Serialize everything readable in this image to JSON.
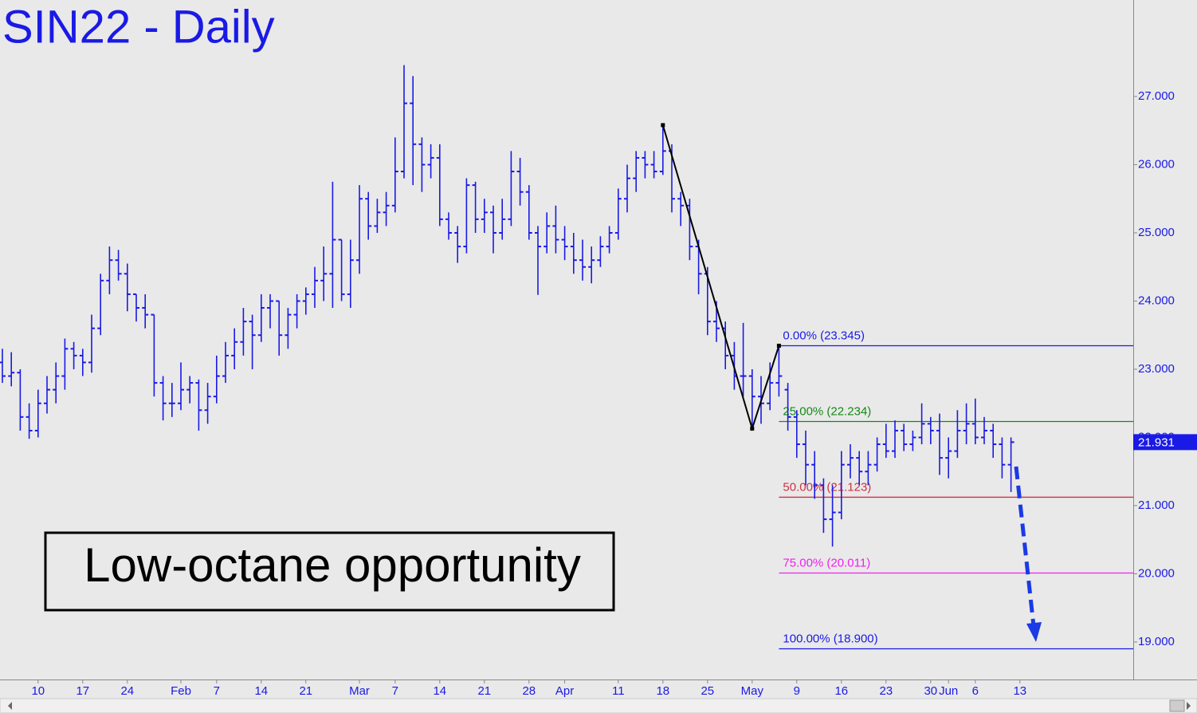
{
  "chart_data": {
    "type": "ohlc",
    "title": "SIN22 - Daily",
    "annotation": "Low-octane opportunity",
    "color": "#1a1ae6",
    "categories": [
      null,
      null,
      null,
      null,
      "10",
      null,
      null,
      null,
      null,
      "17",
      null,
      null,
      null,
      null,
      "24",
      null,
      null,
      null,
      null,
      null,
      "Feb",
      null,
      null,
      null,
      "7",
      null,
      null,
      null,
      null,
      "14",
      null,
      null,
      null,
      null,
      "21",
      null,
      null,
      null,
      null,
      null,
      "Mar",
      null,
      null,
      null,
      "7",
      null,
      null,
      null,
      null,
      "14",
      null,
      null,
      null,
      null,
      "21",
      null,
      null,
      null,
      null,
      "28",
      null,
      null,
      null,
      "Apr",
      null,
      null,
      null,
      null,
      null,
      "11",
      null,
      null,
      null,
      null,
      "18",
      null,
      null,
      null,
      null,
      "25",
      null,
      null,
      null,
      null,
      "May",
      null,
      null,
      null,
      null,
      "9",
      null,
      null,
      null,
      null,
      "16",
      null,
      null,
      null,
      null,
      "23",
      null,
      null,
      null,
      null,
      "30",
      null,
      "Jun",
      null,
      null,
      "6",
      null,
      null,
      null,
      null,
      "13"
    ],
    "open": [
      23.1,
      22.9,
      22.95,
      22.3,
      22.1,
      22.5,
      22.7,
      22.9,
      23.3,
      23.2,
      23.1,
      23.6,
      24.3,
      24.6,
      24.4,
      24.1,
      23.9,
      23.8,
      22.8,
      22.5,
      22.5,
      22.7,
      22.8,
      22.4,
      22.6,
      22.9,
      23.2,
      23.4,
      23.7,
      23.5,
      23.9,
      24.0,
      23.5,
      23.8,
      24.0,
      24.1,
      24.3,
      24.4,
      24.9,
      24.1,
      24.6,
      25.5,
      25.1,
      25.3,
      25.4,
      25.9,
      26.9,
      26.3,
      26.0,
      26.1,
      25.2,
      25.0,
      24.8,
      25.7,
      25.2,
      25.3,
      25.0,
      25.2,
      25.9,
      25.6,
      25.0,
      24.8,
      25.1,
      24.9,
      24.8,
      24.6,
      24.5,
      24.6,
      24.8,
      25.0,
      25.5,
      25.8,
      26.1,
      26.0,
      25.9,
      26.2,
      25.5,
      25.4,
      24.8,
      24.4,
      23.7,
      23.6,
      23.2,
      22.9,
      22.9,
      22.6,
      22.5,
      22.8,
      22.7,
      22.3,
      21.9,
      21.6,
      21.3,
      20.8,
      20.9,
      21.6,
      21.7,
      21.5,
      21.6,
      21.9,
      21.8,
      22.1,
      21.9,
      22.0,
      22.2,
      22.1,
      21.7,
      21.8,
      22.1,
      22.2,
      22.0,
      22.1,
      21.9,
      21.6,
      null
    ],
    "high": [
      23.3,
      23.25,
      23.0,
      22.5,
      22.7,
      22.9,
      23.1,
      23.45,
      23.4,
      23.3,
      23.8,
      24.4,
      24.8,
      24.75,
      24.55,
      24.1,
      24.1,
      23.8,
      22.9,
      22.8,
      23.1,
      22.9,
      22.85,
      22.8,
      23.2,
      23.4,
      23.6,
      23.9,
      23.8,
      24.1,
      24.1,
      24.0,
      23.9,
      24.1,
      24.2,
      24.5,
      24.8,
      25.75,
      24.9,
      24.9,
      25.7,
      25.6,
      25.5,
      25.6,
      26.4,
      27.46,
      27.3,
      26.4,
      26.3,
      26.3,
      25.3,
      25.1,
      25.8,
      25.75,
      25.5,
      25.4,
      25.5,
      26.2,
      26.1,
      25.7,
      25.1,
      25.3,
      25.4,
      25.1,
      25.0,
      24.9,
      24.8,
      24.95,
      25.1,
      25.65,
      26.0,
      26.2,
      26.2,
      26.2,
      26.58,
      26.3,
      25.6,
      25.5,
      24.9,
      24.5,
      24.0,
      23.7,
      23.4,
      23.68,
      23.0,
      22.9,
      23.1,
      23.345,
      22.8,
      22.4,
      22.1,
      21.8,
      21.4,
      21.3,
      21.8,
      21.9,
      21.8,
      21.8,
      22.0,
      22.2,
      22.25,
      22.2,
      22.1,
      22.5,
      22.3,
      22.35,
      22.0,
      22.4,
      22.5,
      22.57,
      22.3,
      22.2,
      22.0,
      22.0,
      null
    ],
    "low": [
      22.8,
      22.75,
      22.1,
      21.98,
      22.0,
      22.35,
      22.5,
      22.7,
      23.0,
      22.9,
      22.95,
      23.5,
      24.1,
      24.3,
      23.85,
      23.7,
      23.6,
      22.6,
      22.25,
      22.3,
      22.4,
      22.5,
      22.1,
      22.2,
      22.5,
      22.8,
      23.0,
      23.2,
      23.0,
      23.4,
      23.6,
      23.2,
      23.3,
      23.6,
      23.8,
      23.9,
      24.0,
      23.9,
      24.0,
      23.9,
      24.4,
      24.9,
      25.0,
      25.1,
      25.3,
      25.8,
      25.7,
      25.6,
      25.8,
      25.1,
      24.9,
      24.56,
      24.7,
      25.0,
      25.0,
      24.7,
      24.9,
      25.1,
      25.4,
      24.9,
      24.09,
      24.7,
      24.7,
      24.6,
      24.4,
      24.3,
      24.26,
      24.5,
      24.7,
      24.9,
      25.3,
      25.6,
      25.8,
      25.8,
      25.85,
      25.3,
      25.1,
      24.6,
      24.1,
      23.5,
      23.4,
      23.0,
      22.7,
      22.6,
      22.13,
      22.2,
      22.4,
      22.6,
      22.1,
      21.7,
      21.3,
      21.1,
      20.6,
      20.4,
      20.8,
      21.4,
      21.3,
      21.3,
      21.5,
      21.7,
      21.7,
      21.8,
      21.8,
      21.9,
      21.9,
      21.45,
      21.4,
      21.7,
      21.9,
      21.9,
      21.9,
      21.7,
      21.4,
      21.2,
      null
    ],
    "close": [
      22.9,
      22.95,
      22.3,
      22.1,
      22.5,
      22.7,
      22.9,
      23.3,
      23.2,
      23.1,
      23.6,
      24.3,
      24.6,
      24.4,
      24.1,
      23.9,
      23.8,
      22.8,
      22.5,
      22.5,
      22.7,
      22.8,
      22.4,
      22.6,
      22.9,
      23.2,
      23.4,
      23.7,
      23.5,
      23.9,
      24.0,
      23.5,
      23.8,
      24.0,
      24.1,
      24.3,
      24.4,
      24.9,
      24.1,
      24.6,
      25.5,
      25.1,
      25.3,
      25.4,
      25.9,
      26.9,
      26.3,
      26.0,
      26.1,
      25.2,
      25.0,
      24.8,
      25.7,
      25.2,
      25.3,
      25.0,
      25.2,
      25.9,
      25.6,
      25.0,
      24.8,
      25.1,
      24.9,
      24.8,
      24.6,
      24.5,
      24.6,
      24.8,
      25.0,
      25.5,
      25.8,
      26.1,
      26.0,
      25.9,
      26.2,
      25.5,
      25.4,
      24.8,
      24.4,
      23.7,
      23.6,
      23.2,
      22.9,
      22.9,
      22.6,
      22.5,
      22.8,
      22.9,
      22.3,
      21.9,
      21.6,
      21.3,
      20.8,
      20.9,
      21.6,
      21.7,
      21.5,
      21.6,
      21.9,
      21.8,
      22.1,
      21.9,
      22.0,
      22.2,
      22.1,
      21.7,
      21.8,
      22.1,
      22.2,
      22.0,
      22.1,
      21.9,
      21.6,
      21.931,
      null
    ],
    "swing_line": {
      "color": "#000000",
      "bars": [
        74,
        84,
        87
      ],
      "values": [
        26.58,
        22.13,
        23.345
      ]
    },
    "levels": [
      {
        "label": "0.00% (23.345)",
        "value": 23.345,
        "color": "#1a1ae6"
      },
      {
        "label": "25.00% (22.234)",
        "value": 22.234,
        "color": "#138a13"
      },
      {
        "label": "50.00% (21.123)",
        "value": 21.123,
        "color": "#cc3344"
      },
      {
        "label": "75.00% (20.011)",
        "value": 20.011,
        "color": "#f020f0"
      },
      {
        "label": "100.00% (18.900)",
        "value": 18.9,
        "color": "#1a1ae6"
      }
    ],
    "last_price": 21.931,
    "ylim": [
      18.45,
      28.415
    ],
    "yticks": [
      {
        "value": 19,
        "label": "19.000"
      },
      {
        "value": 20,
        "label": "20.000"
      },
      {
        "value": 21,
        "label": "21.000"
      },
      {
        "value": 22,
        "label": "22.000"
      },
      {
        "value": 23,
        "label": "23.000"
      },
      {
        "value": 24,
        "label": "24.000"
      },
      {
        "value": 25,
        "label": "25.000"
      },
      {
        "value": 26,
        "label": "26.000"
      },
      {
        "value": 27,
        "label": "27.000"
      }
    ]
  }
}
